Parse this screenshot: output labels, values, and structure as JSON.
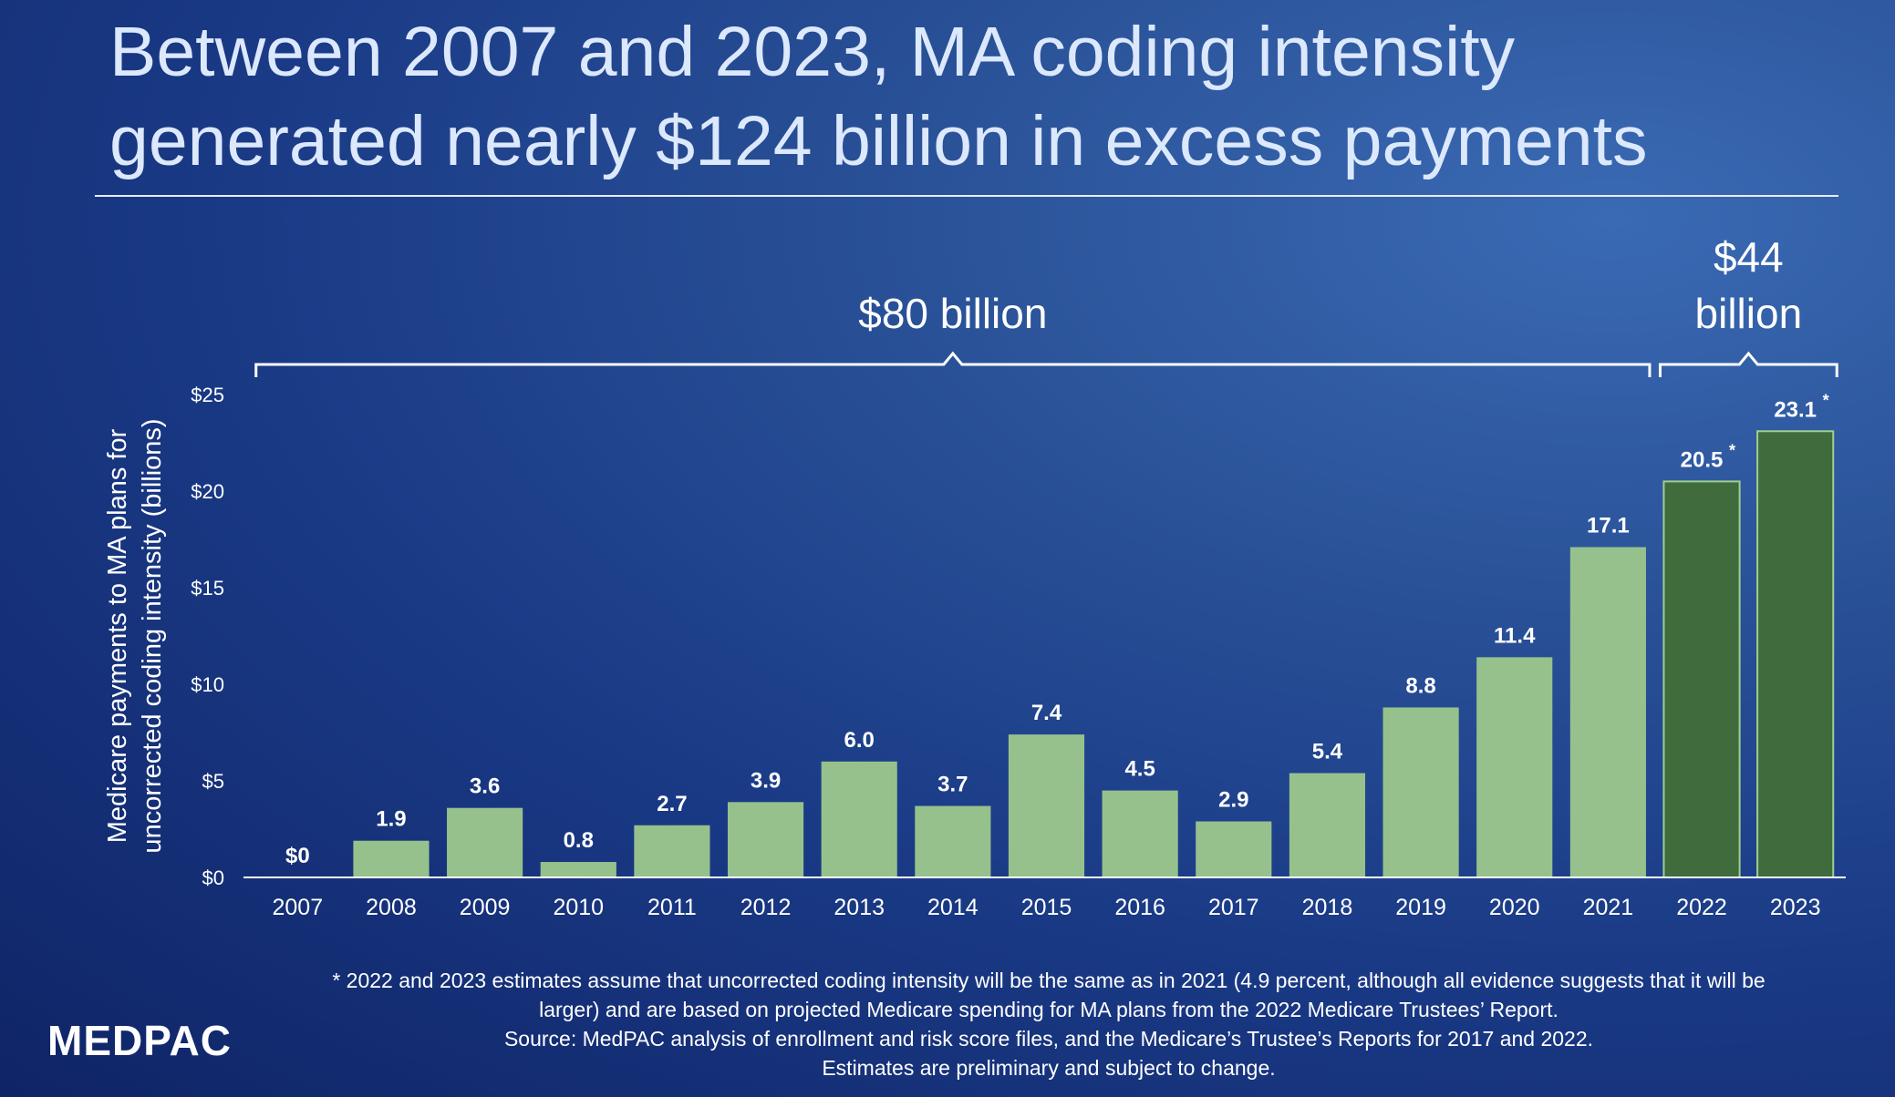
{
  "title_line1": "Between 2007 and 2023, MA coding intensity",
  "title_line2": "generated nearly $124 billion in excess payments",
  "logo_text": "MEDPAC",
  "footnotes": [
    "* 2022 and 2023 estimates assume that uncorrected coding intensity will be the same as in 2021 (4.9 percent, although all evidence suggests that it will be",
    "larger) and are based on projected Medicare spending for MA plans from the 2022 Medicare Trustees’ Report.",
    "Source: MedPAC analysis of enrollment and risk score files, and the Medicare’s Trustee’s Reports for 2017 and 2022.",
    "Estimates are preliminary and subject to change."
  ],
  "chart_data": {
    "type": "bar",
    "categories": [
      "2007",
      "2008",
      "2009",
      "2010",
      "2011",
      "2012",
      "2013",
      "2014",
      "2015",
      "2016",
      "2017",
      "2018",
      "2019",
      "2020",
      "2021",
      "2022",
      "2023"
    ],
    "values": [
      0,
      1.9,
      3.6,
      0.8,
      2.7,
      3.9,
      6.0,
      3.7,
      7.4,
      4.5,
      2.9,
      5.4,
      8.8,
      11.4,
      17.1,
      20.5,
      23.1
    ],
    "data_labels": [
      "$0",
      "1.9",
      "3.6",
      "0.8",
      "2.7",
      "3.9",
      "6.0",
      "3.7",
      "7.4",
      "4.5",
      "2.9",
      "5.4",
      "8.8",
      "11.4",
      "17.1",
      "20.5",
      "23.1"
    ],
    "estimated": [
      false,
      false,
      false,
      false,
      false,
      false,
      false,
      false,
      false,
      false,
      false,
      false,
      false,
      false,
      false,
      true,
      true
    ],
    "estimate_marker": "*",
    "ylabel_line1": "Medicare payments to MA plans for",
    "ylabel_line2": "uncorrected coding intensity (billions)",
    "ylim": [
      0,
      25
    ],
    "yticks": [
      0,
      5,
      10,
      15,
      20,
      25
    ],
    "ytick_labels": [
      "$0",
      "$5",
      "$10",
      "$15",
      "$20",
      "$25"
    ],
    "colors": {
      "actual": "#96c18d",
      "estimated": "#3f6b3d",
      "estimated_border": "#9fd08f"
    },
    "brackets": [
      {
        "label_lines": [
          "$80 billion"
        ],
        "from": "2007",
        "to": "2021"
      },
      {
        "label_lines": [
          "$44",
          "billion"
        ],
        "from": "2022",
        "to": "2023"
      }
    ]
  }
}
